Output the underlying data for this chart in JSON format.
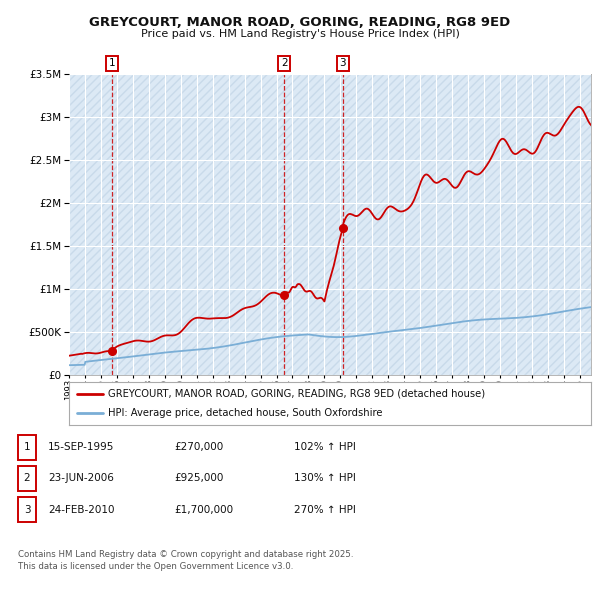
{
  "title": "GREYCOURT, MANOR ROAD, GORING, READING, RG8 9ED",
  "subtitle": "Price paid vs. HM Land Registry's House Price Index (HPI)",
  "background_color": "#ffffff",
  "plot_bg_color": "#dce9f5",
  "hatch_color": "#c8daea",
  "grid_color": "#ffffff",
  "sale_dates": [
    1995.71,
    2006.48,
    2010.15
  ],
  "sale_prices": [
    270000,
    925000,
    1700000
  ],
  "sale_labels": [
    "1",
    "2",
    "3"
  ],
  "legend_label_red": "GREYCOURT, MANOR ROAD, GORING, READING, RG8 9ED (detached house)",
  "legend_label_blue": "HPI: Average price, detached house, South Oxfordshire",
  "table_rows": [
    [
      "1",
      "15-SEP-1995",
      "£270,000",
      "102% ↑ HPI"
    ],
    [
      "2",
      "23-JUN-2006",
      "£925,000",
      "130% ↑ HPI"
    ],
    [
      "3",
      "24-FEB-2010",
      "£1,700,000",
      "270% ↑ HPI"
    ]
  ],
  "footer": "Contains HM Land Registry data © Crown copyright and database right 2025.\nThis data is licensed under the Open Government Licence v3.0.",
  "ylim": [
    0,
    3500000
  ],
  "xlim_start": 1993.0,
  "xlim_end": 2025.7,
  "red_color": "#cc0000",
  "blue_color": "#7aaed6",
  "marker_color": "#cc0000"
}
